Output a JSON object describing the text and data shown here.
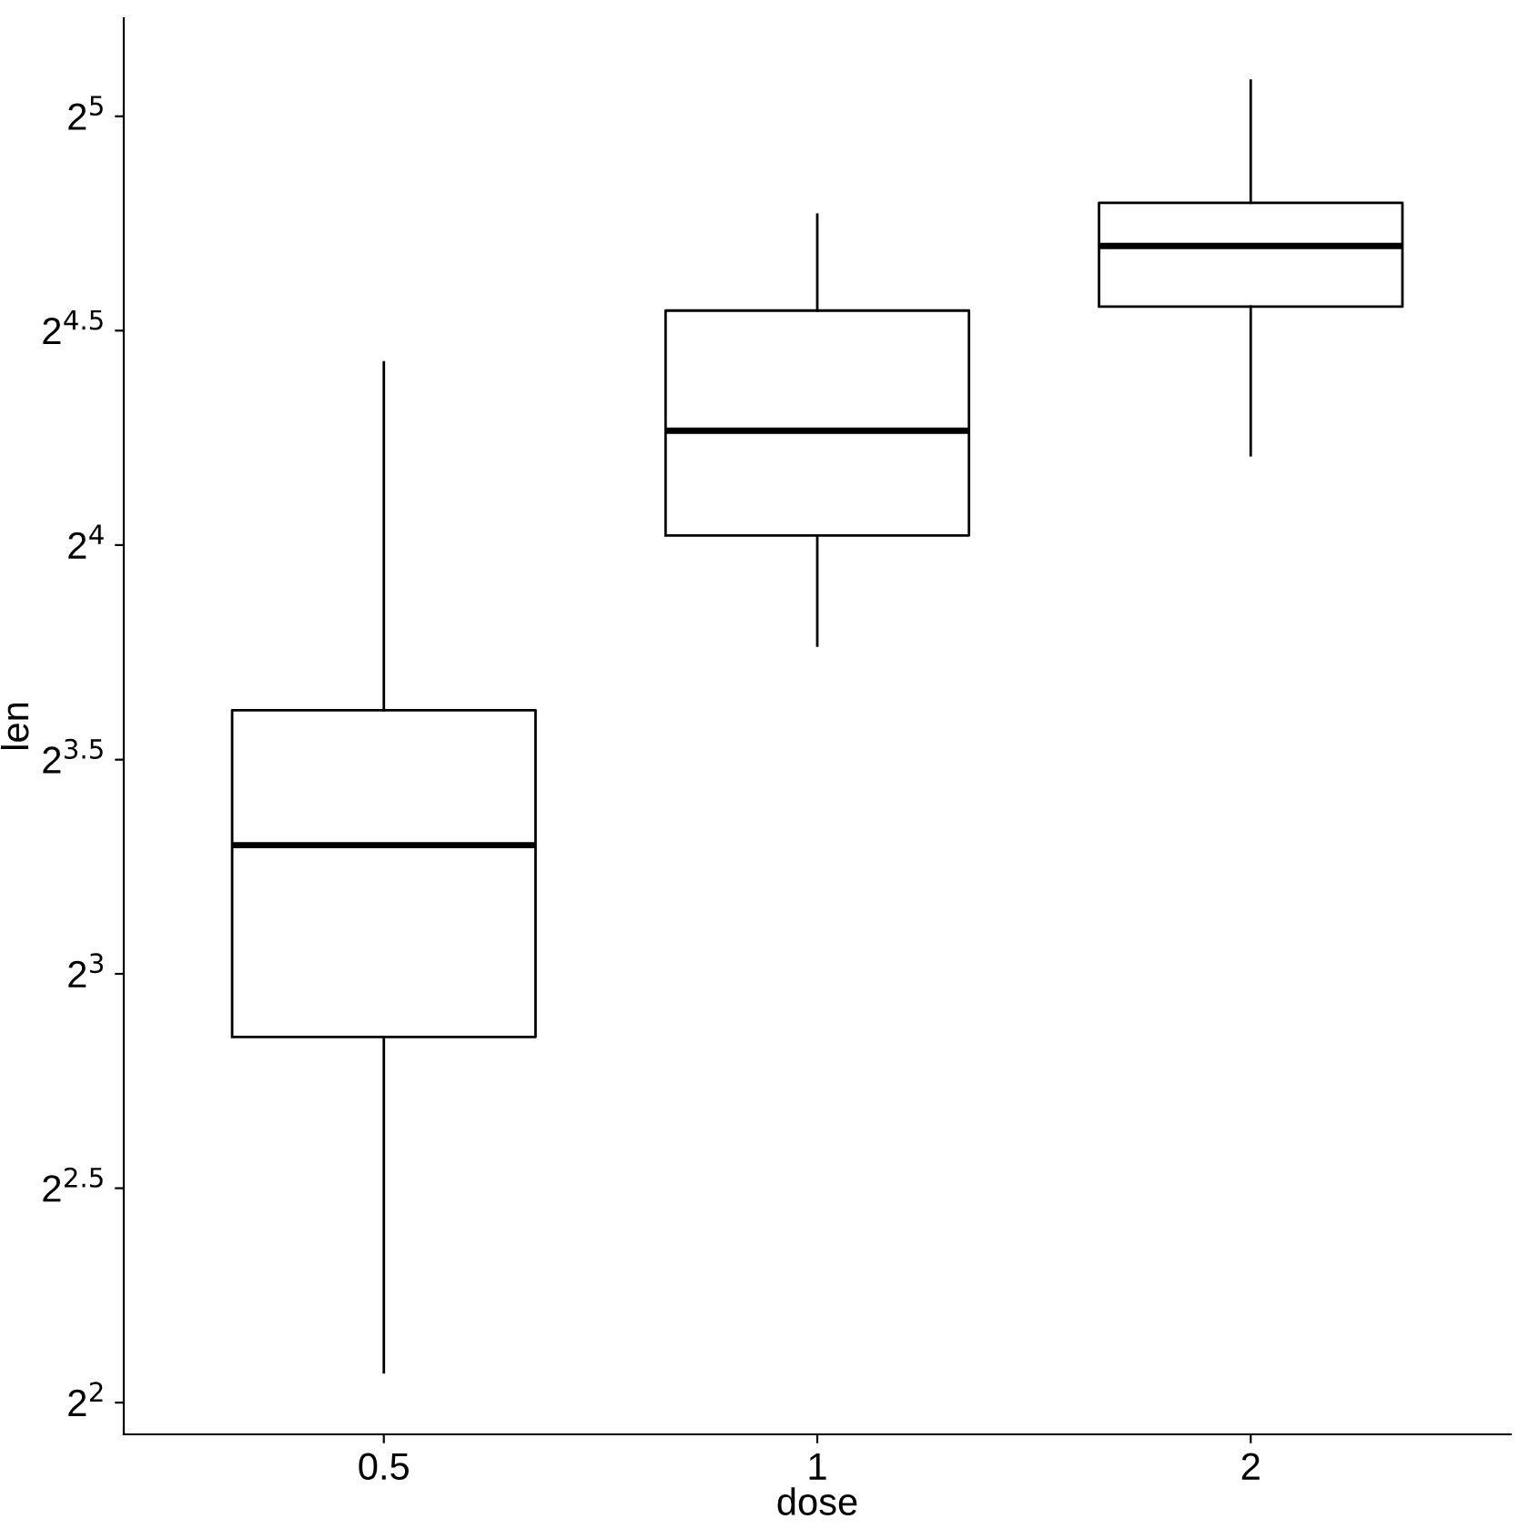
{
  "chart_data": {
    "type": "box",
    "xlabel": "dose",
    "ylabel": "len",
    "categories": [
      "0.5",
      "1",
      "2"
    ],
    "boxes": [
      {
        "low": 4.2,
        "q1": 7.225,
        "median": 9.85,
        "q3": 12.25,
        "high": 21.5
      },
      {
        "low": 13.6,
        "q1": 16.25,
        "median": 19.25,
        "q3": 23.375,
        "high": 27.3
      },
      {
        "low": 18.5,
        "q1": 23.525,
        "median": 25.95,
        "q3": 27.825,
        "high": 33.9
      }
    ],
    "log": "y",
    "ylim": [
      3.8,
      37.5
    ],
    "yticks": [
      {
        "value": 4,
        "label": "2$^{2}$"
      },
      {
        "value": 5.657,
        "label": "2$^{2.5}$"
      },
      {
        "value": 8,
        "label": "2$^{3}$"
      },
      {
        "value": 11.31,
        "label": "2$^{3.5}$"
      },
      {
        "value": 16,
        "label": "2$^{4}$"
      },
      {
        "value": 22.63,
        "label": "2$^{4.5}$"
      },
      {
        "value": 32,
        "label": "2$^{5}$"
      }
    ],
    "grid": false,
    "legend": false
  }
}
